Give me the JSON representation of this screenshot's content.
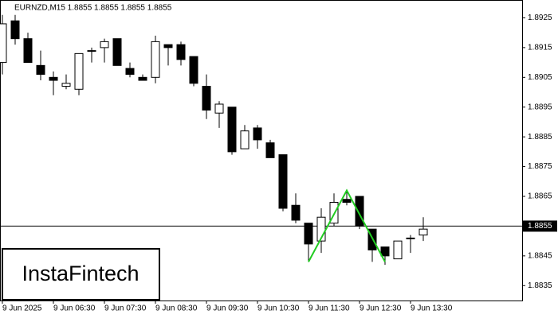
{
  "chart_data": {
    "type": "candlestick",
    "title": "EURNZD,M15  1.8855 1.8855 1.8855 1.8855",
    "categories": [
      "9 Jun 2025",
      null,
      null,
      null,
      "9 Jun 06:30",
      null,
      null,
      null,
      "9 Jun 07:30",
      null,
      null,
      null,
      "9 Jun 08:30",
      null,
      null,
      null,
      "9 Jun 09:30",
      null,
      null,
      null,
      "9 Jun 10:30",
      null,
      null,
      null,
      "9 Jun 11:30",
      null,
      null,
      null,
      "9 Jun 12:30",
      null,
      null,
      null,
      "9 Jun 13:30",
      null
    ],
    "open": [
      1.891,
      1.8924,
      1.8918,
      1.8909,
      1.8905,
      1.8902,
      1.8901,
      1.8914,
      1.8915,
      1.8918,
      1.8908,
      1.8905,
      1.8905,
      1.8916,
      1.8916,
      1.8912,
      1.8902,
      1.8893,
      1.8895,
      1.8881,
      1.8888,
      1.8883,
      1.8879,
      1.8862,
      1.8856,
      1.885,
      1.8856,
      1.8864,
      1.8865,
      1.8854,
      1.8848,
      1.8844,
      1.8851,
      1.8852
    ],
    "high": [
      1.8926,
      1.8926,
      1.892,
      1.8914,
      1.8907,
      1.8906,
      1.8913,
      1.8915,
      1.8918,
      1.8918,
      1.891,
      1.8906,
      1.8919,
      1.8916,
      1.8917,
      1.8912,
      1.8906,
      1.8897,
      1.8895,
      1.8889,
      1.8889,
      1.8884,
      1.8879,
      1.8866,
      1.8856,
      1.8861,
      1.8866,
      1.8867,
      1.8865,
      1.8854,
      1.8848,
      1.885,
      1.8852,
      1.8858
    ],
    "low": [
      1.8906,
      1.8916,
      1.891,
      1.8904,
      1.8899,
      1.8901,
      1.8899,
      1.891,
      1.891,
      1.8909,
      1.8905,
      1.8904,
      1.8903,
      1.8909,
      1.8909,
      1.8902,
      1.8891,
      1.8888,
      1.8879,
      1.8881,
      1.8881,
      1.8878,
      1.886,
      1.8856,
      1.8843,
      1.8846,
      1.8855,
      1.8862,
      1.8854,
      1.8843,
      1.8842,
      1.8844,
      1.8846,
      1.885
    ],
    "close": [
      1.8923,
      1.8918,
      1.891,
      1.8906,
      1.8904,
      1.8903,
      1.8913,
      1.8914,
      1.8917,
      1.8909,
      1.8906,
      1.8904,
      1.8917,
      1.8915,
      1.8911,
      1.8903,
      1.8894,
      1.8896,
      1.888,
      1.8887,
      1.8884,
      1.8878,
      1.8861,
      1.8857,
      1.8849,
      1.8858,
      1.8863,
      1.8863,
      1.8855,
      1.8847,
      1.8845,
      1.885,
      1.8851,
      1.8854
    ],
    "up_color": "#ffffff",
    "down_color": "#000000",
    "ylim": [
      1.883,
      1.8931
    ],
    "yticks": [
      1.8835,
      1.8845,
      1.8865,
      1.8875,
      1.8885,
      1.8895,
      1.8905,
      1.8915,
      1.8925
    ],
    "current_price": 1.8855,
    "pattern": {
      "x": [
        24,
        27,
        30
      ],
      "values": [
        1.8843,
        1.8867,
        1.8843
      ],
      "color": "#22cc22"
    }
  },
  "logo": "InstaFintech"
}
